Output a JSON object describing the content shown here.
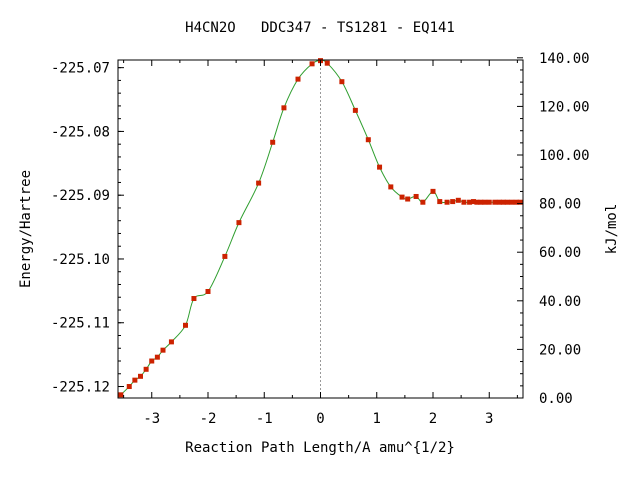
{
  "chart_data": {
    "type": "line",
    "title": "H4CN2O   DDC347 - TS1281 - EQ141",
    "xlabel": "Reaction Path Length/A amu^{1/2}",
    "ylabel": "Energy/Hartree",
    "y2label": "kJ/mol",
    "xlim": [
      -3.6,
      3.6
    ],
    "ylim": [
      -225.1218,
      -225.0688
    ],
    "y2lim": [
      0,
      139.1
    ],
    "x_ticks": [
      -3,
      -2,
      -1,
      0,
      1,
      2,
      3
    ],
    "x_tick_labels": [
      "-3",
      "-2",
      "-1",
      "0",
      "1",
      "2",
      "3"
    ],
    "y_ticks": [
      -225.07,
      -225.08,
      -225.09,
      -225.1,
      -225.11,
      -225.12
    ],
    "y_tick_labels": [
      "-225.07",
      "-225.08",
      "-225.09",
      "-225.10",
      "-225.11",
      "-225.12"
    ],
    "y2_ticks": [
      0,
      20,
      40,
      60,
      80,
      100,
      120,
      140
    ],
    "y2_tick_labels": [
      "0.00",
      "20.00",
      "40.00",
      "60.00",
      "80.00",
      "100.00",
      "120.00",
      "140.00"
    ],
    "ts_marker_x": 0,
    "grid": false,
    "colors": {
      "line": "#2e9e2e",
      "points": "#cc2200",
      "ts_line": "#999999"
    },
    "series": [
      {
        "x": [
          -3.55,
          -3.4,
          -3.3,
          -3.2,
          -3.1,
          -3.0,
          -2.9,
          -2.8,
          -2.65,
          -2.4,
          -2.25,
          -2.0,
          -1.7,
          -1.45,
          -1.1,
          -0.85,
          -0.65,
          -0.4,
          -0.15,
          0.0,
          0.12,
          0.38,
          0.62,
          0.85,
          1.05,
          1.25,
          1.45,
          1.55,
          1.7,
          1.82,
          2.0,
          2.12,
          2.25,
          2.35,
          2.45,
          2.55,
          2.65,
          2.72,
          2.78,
          2.85,
          2.92,
          3.0,
          3.1,
          3.18,
          3.25,
          3.32,
          3.4,
          3.48,
          3.55
        ],
        "y": [
          -225.1213,
          -225.12,
          -225.119,
          -225.1184,
          -225.1173,
          -225.116,
          -225.1154,
          -225.1143,
          -225.113,
          -225.1104,
          -225.1062,
          -225.1051,
          -225.0996,
          -225.0943,
          -225.0881,
          -225.0817,
          -225.0763,
          -225.0718,
          -225.0694,
          -225.0689,
          -225.0693,
          -225.0722,
          -225.0767,
          -225.0813,
          -225.0856,
          -225.0887,
          -225.0903,
          -225.0906,
          -225.0902,
          -225.0911,
          -225.0894,
          -225.091,
          -225.0911,
          -225.091,
          -225.0908,
          -225.0911,
          -225.0911,
          -225.091,
          -225.0911,
          -225.0911,
          -225.0911,
          -225.0911,
          -225.0911,
          -225.0911,
          -225.0911,
          -225.0911,
          -225.0911,
          -225.0911,
          -225.0911
        ]
      }
    ]
  }
}
